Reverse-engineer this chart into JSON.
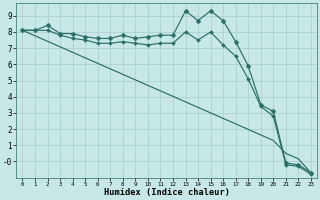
{
  "xlabel": "Humidex (Indice chaleur)",
  "bg_color": "#c8e8e8",
  "line_color": "#2a6e65",
  "grid_color": "#a8cccc",
  "xlim": [
    -0.5,
    23.5
  ],
  "ylim": [
    -1.0,
    9.8
  ],
  "xticks": [
    0,
    1,
    2,
    3,
    4,
    5,
    6,
    7,
    8,
    9,
    10,
    11,
    12,
    13,
    14,
    15,
    16,
    17,
    18,
    19,
    20,
    21,
    22,
    23
  ],
  "yticks": [
    0,
    1,
    2,
    3,
    4,
    5,
    6,
    7,
    8,
    9
  ],
  "line1_y": [
    8.1,
    8.1,
    8.4,
    7.9,
    7.9,
    7.7,
    7.6,
    7.6,
    7.8,
    7.6,
    7.7,
    7.8,
    7.8,
    9.3,
    8.7,
    9.3,
    8.7,
    7.4,
    5.9,
    3.5,
    3.1,
    -0.1,
    -0.2,
    -0.7
  ],
  "line2_y": [
    8.1,
    8.1,
    8.1,
    7.8,
    7.6,
    7.5,
    7.3,
    7.3,
    7.4,
    7.3,
    7.2,
    7.3,
    7.3,
    8.0,
    7.5,
    8.0,
    7.2,
    6.5,
    5.1,
    3.4,
    2.8,
    -0.2,
    -0.3,
    -0.8
  ],
  "line3_y": [
    8.1,
    7.76,
    7.42,
    7.08,
    6.74,
    6.4,
    6.06,
    5.72,
    5.38,
    5.04,
    4.7,
    4.36,
    4.02,
    3.68,
    3.34,
    3.0,
    2.66,
    2.32,
    1.98,
    1.64,
    1.3,
    0.5,
    0.16,
    -0.7
  ]
}
